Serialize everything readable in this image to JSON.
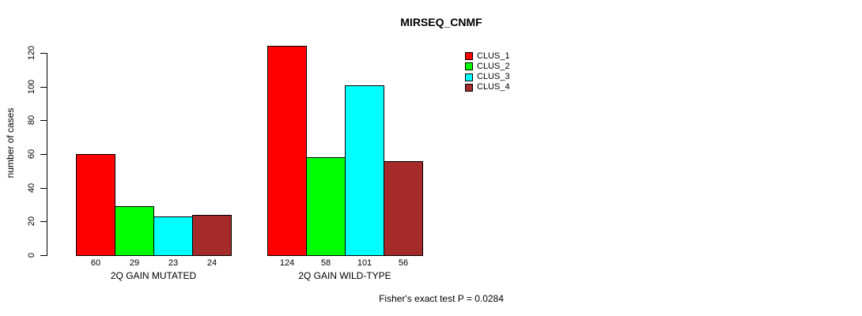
{
  "page": {
    "background_color": "#ffffff",
    "text_color": "#000000"
  },
  "chart_data": {
    "type": "bar",
    "title": "MIRSEQ_CNMF",
    "ylabel": "number of cases",
    "xlabel": "",
    "categories": [
      "2Q GAIN MUTATED",
      "2Q GAIN WILD-TYPE"
    ],
    "series": [
      {
        "name": "CLUS_1",
        "color": "#FF0000",
        "values": [
          60,
          124
        ]
      },
      {
        "name": "CLUS_2",
        "color": "#00FF00",
        "values": [
          29,
          58
        ]
      },
      {
        "name": "CLUS_3",
        "color": "#00FFFF",
        "values": [
          23,
          101
        ]
      },
      {
        "name": "CLUS_4",
        "color": "#A52A2A",
        "values": [
          24,
          56
        ]
      }
    ],
    "yticks": [
      0,
      20,
      40,
      60,
      80,
      100,
      120
    ],
    "ylim": [
      0,
      124
    ],
    "grid": false,
    "bar_labels_shown": true,
    "legend_position": "top-right",
    "legend_entries": [
      "CLUS_1",
      "CLUS_2",
      "CLUS_3",
      "CLUS_4"
    ],
    "annotation": "Fisher's exact test P = 0.0284"
  }
}
